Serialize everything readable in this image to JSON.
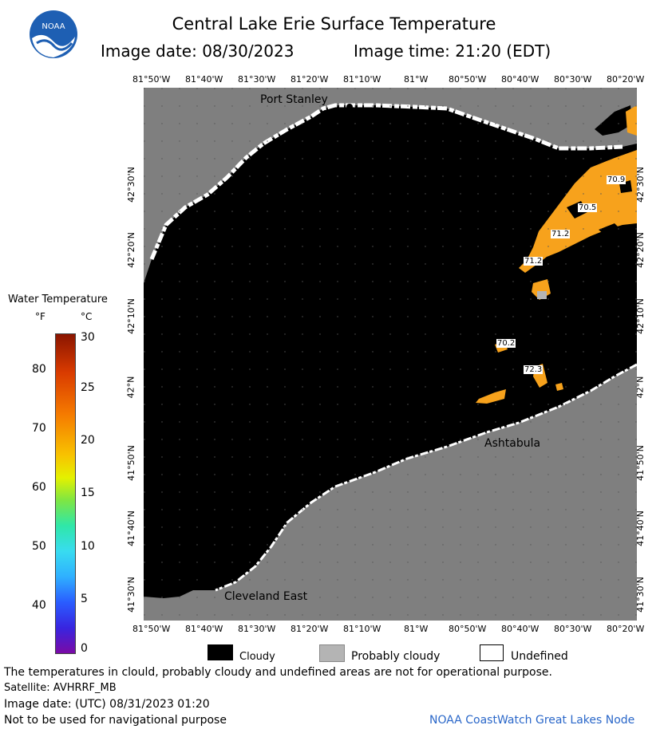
{
  "header": {
    "title": "Central Lake Erie Surface Temperature",
    "image_date": "Image date: 08/30/2023",
    "image_time": "Image time: 21:20 (EDT)"
  },
  "logo": {
    "text": "NOAA"
  },
  "map": {
    "lon_ticks": [
      "81°50'W",
      "81°40'W",
      "81°30'W",
      "81°20'W",
      "81°10'W",
      "81°W",
      "80°50'W",
      "80°40'W",
      "80°30'W",
      "80°20'W"
    ],
    "lat_ticks": [
      "42°30'N",
      "42°20'N",
      "42°10'N",
      "42°N",
      "41°50'N",
      "41°40'N",
      "41°30'N"
    ],
    "places": [
      {
        "name": "Port Stanley"
      },
      {
        "name": "Ashtabula"
      },
      {
        "name": "Cleveland East"
      }
    ],
    "temperature_labels": [
      "70.9",
      "70.5",
      "71.2",
      "71.2",
      "70.2",
      "72.3"
    ],
    "colors": {
      "land": "#7f7f7f",
      "cloudy": "#000000",
      "probably_cloudy": "#b4b4b4",
      "undefined": "#ffffff",
      "warm_water": "#f7a21c"
    }
  },
  "legend": {
    "title": "Water Temperature",
    "unit_f": "°F",
    "unit_c": "°C",
    "fahrenheit_ticks": [
      "80",
      "70",
      "60",
      "50",
      "40"
    ],
    "celsius_ticks": [
      "30",
      "25",
      "20",
      "15",
      "10",
      "5",
      "0"
    ]
  },
  "key": {
    "cloudy": "Cloudy",
    "probably_cloudy": "Probably cloudy",
    "undefined": "Undefined"
  },
  "footer": {
    "note": "The temperatures in clould, probably cloudy and undefined areas are not for operational purpose.",
    "satellite": "Satellite: AVHRRF_MB",
    "utc_date": "Image date: (UTC) 08/31/2023  01:20",
    "navigation": "Not to be used for navigational purpose",
    "credit": "NOAA CoastWatch Great Lakes Node"
  }
}
